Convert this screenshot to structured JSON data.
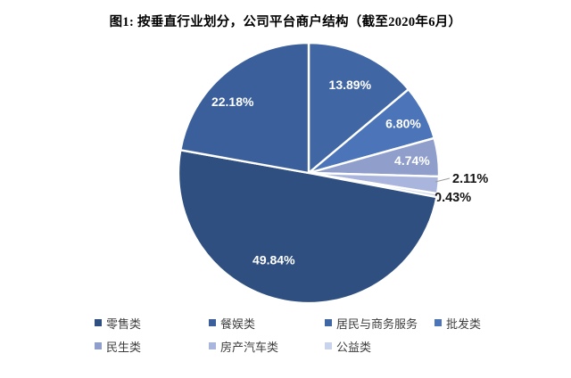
{
  "chart_data": {
    "type": "pie",
    "title": "图1: 按垂直行业划分，公司平台商户结构（截至2020年6月）",
    "unit": "%",
    "legend_position": "bottom",
    "rotation_note": "13.89% slice starts at 12 o'clock, slices proceed clockwise",
    "series": [
      {
        "name": "零售类",
        "value": 49.84,
        "label": "49.84%",
        "color": "#2F4F80"
      },
      {
        "name": "餐娱类",
        "value": 22.18,
        "label": "22.18%",
        "color": "#3B5F9B"
      },
      {
        "name": "居民与商务服务",
        "value": 13.89,
        "label": "13.89%",
        "color": "#4066A4"
      },
      {
        "name": "批发类",
        "value": 6.8,
        "label": "6.80%",
        "color": "#4C74B8"
      },
      {
        "name": "民生类",
        "value": 4.74,
        "label": "4.74%",
        "color": "#8F9ECB"
      },
      {
        "name": "房产汽车类",
        "value": 2.11,
        "label": "2.11%",
        "color": "#A9B5DC"
      },
      {
        "name": "公益类",
        "value": 0.43,
        "label": "0.43%",
        "color": "#CAD3EC"
      }
    ]
  }
}
